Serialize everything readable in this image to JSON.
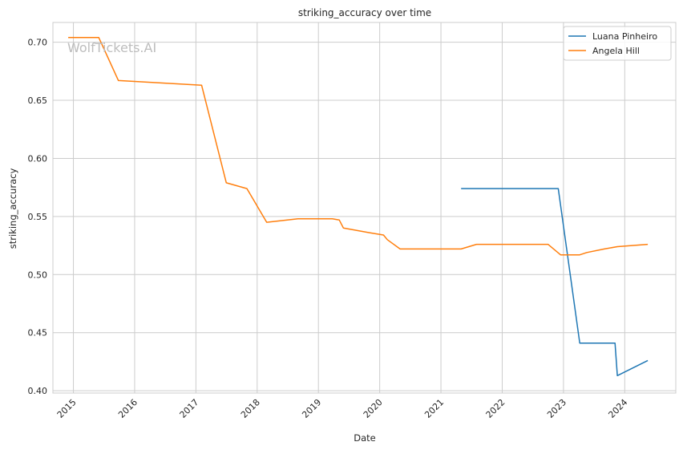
{
  "chart_data": {
    "type": "line",
    "title": "striking_accuracy over time",
    "xlabel": "Date",
    "ylabel": "striking_accuracy",
    "watermark": "WolfTickets.AI",
    "x_ticks": [
      "2015",
      "2016",
      "2017",
      "2018",
      "2019",
      "2020",
      "2021",
      "2022",
      "2023",
      "2024"
    ],
    "y_ticks": [
      "0.40",
      "0.45",
      "0.50",
      "0.55",
      "0.60",
      "0.65",
      "0.70"
    ],
    "xlim": [
      "2014-09-01",
      "2024-11-01"
    ],
    "ylim": [
      0.398,
      0.717
    ],
    "grid": true,
    "legend_position": "top-right",
    "series": [
      {
        "name": "Luana Pinheiro",
        "color": "#1f77b4",
        "points": [
          [
            "2021-05-01",
            0.574
          ],
          [
            "2022-12-01",
            0.574
          ],
          [
            "2023-04-08",
            0.441
          ],
          [
            "2023-11-04",
            0.441
          ],
          [
            "2023-11-18",
            0.413
          ],
          [
            "2024-05-18",
            0.426
          ]
        ]
      },
      {
        "name": "Angela Hill",
        "color": "#ff7f0e",
        "points": [
          [
            "2014-12-01",
            0.704
          ],
          [
            "2015-06-01",
            0.704
          ],
          [
            "2015-09-26",
            0.667
          ],
          [
            "2017-02-04",
            0.663
          ],
          [
            "2017-07-01",
            0.579
          ],
          [
            "2017-11-01",
            0.574
          ],
          [
            "2018-02-27",
            0.545
          ],
          [
            "2018-09-01",
            0.548
          ],
          [
            "2019-03-25",
            0.548
          ],
          [
            "2019-05-05",
            0.547
          ],
          [
            "2019-05-30",
            0.54
          ],
          [
            "2019-11-01",
            0.536
          ],
          [
            "2020-01-24",
            0.534
          ],
          [
            "2020-02-16",
            0.53
          ],
          [
            "2020-05-02",
            0.522
          ],
          [
            "2020-09-05",
            0.522
          ],
          [
            "2021-05-01",
            0.522
          ],
          [
            "2021-08-01",
            0.526
          ],
          [
            "2021-12-01",
            0.526
          ],
          [
            "2022-03-01",
            0.526
          ],
          [
            "2022-06-01",
            0.526
          ],
          [
            "2022-10-01",
            0.526
          ],
          [
            "2022-12-15",
            0.517
          ],
          [
            "2023-03-01",
            0.517
          ],
          [
            "2023-04-08",
            0.517
          ],
          [
            "2023-05-20",
            0.519
          ],
          [
            "2023-09-01",
            0.522
          ],
          [
            "2023-11-18",
            0.524
          ],
          [
            "2024-05-18",
            0.526
          ]
        ]
      }
    ]
  }
}
